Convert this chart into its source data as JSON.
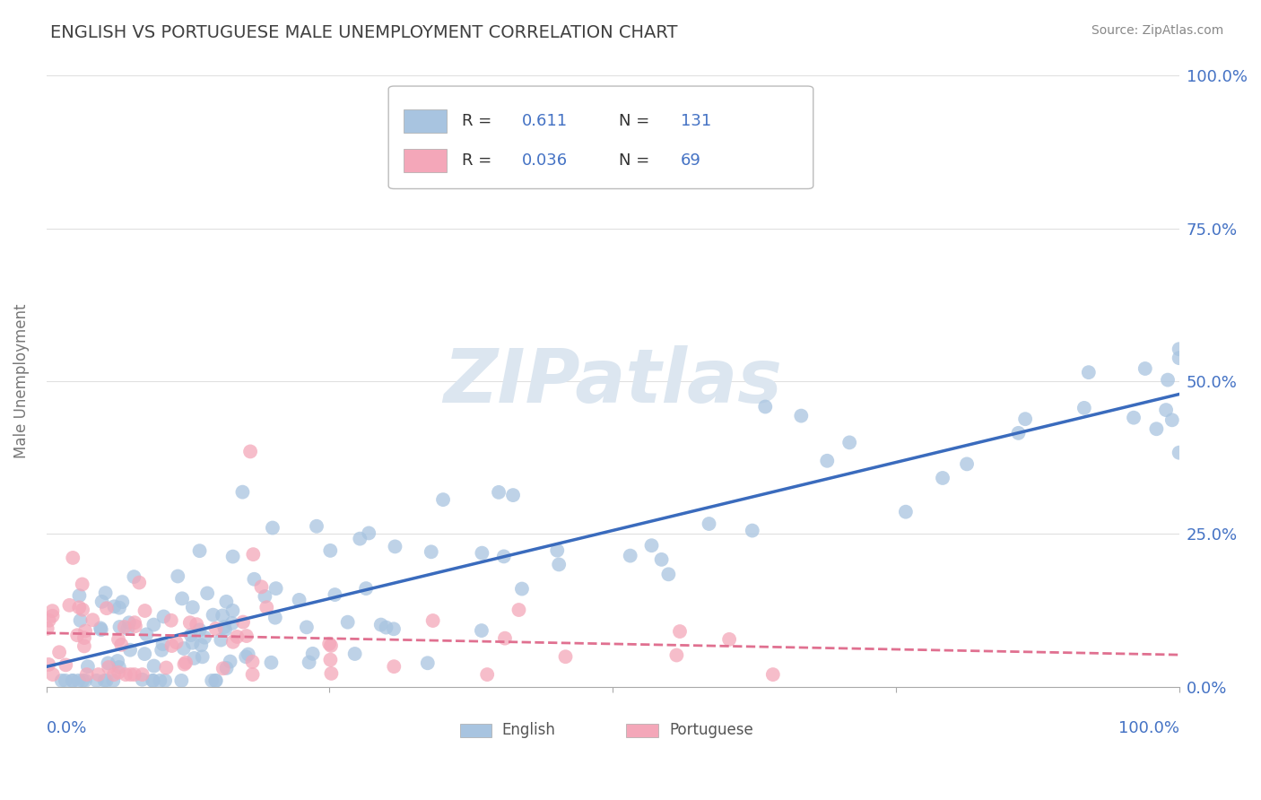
{
  "title": "ENGLISH VS PORTUGUESE MALE UNEMPLOYMENT CORRELATION CHART",
  "source_text": "Source: ZipAtlas.com",
  "ylabel": "Male Unemployment",
  "english_R": 0.611,
  "english_N": 131,
  "portuguese_R": 0.036,
  "portuguese_N": 69,
  "english_color": "#a8c4e0",
  "english_line_color": "#3a6bbd",
  "portuguese_color": "#f4a7b9",
  "portuguese_line_color": "#e07090",
  "title_color": "#404040",
  "axis_label_color": "#4472c4",
  "watermark_color": "#dce6f0",
  "background_color": "#ffffff",
  "grid_color": "#cccccc",
  "watermark": "ZIPatlas"
}
